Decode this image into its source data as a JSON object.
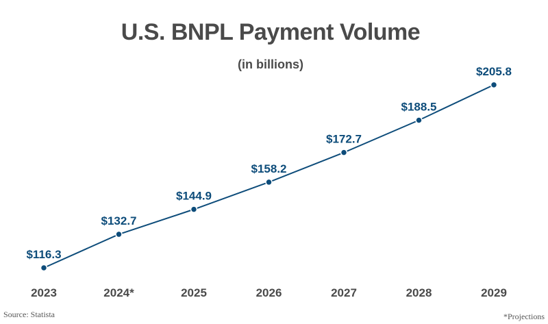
{
  "title": "U.S. BNPL Payment Volume",
  "subtitle": "(in billions)",
  "source": "Source: Statista",
  "footnote": "*Projections",
  "colors": {
    "line": "#0d4c7a",
    "marker": "#0d4c7a",
    "data_label": "#0d4c7a",
    "title": "#4a4a4a",
    "axis_label": "#4a4a4a",
    "background": "#ffffff"
  },
  "chart_data": {
    "type": "line",
    "title": "U.S. BNPL Payment Volume",
    "subtitle": "(in billions)",
    "categories": [
      "2023",
      "2024*",
      "2025",
      "2026",
      "2027",
      "2028",
      "2029"
    ],
    "values": [
      116.3,
      132.7,
      144.9,
      158.2,
      172.7,
      188.5,
      205.8
    ],
    "data_labels": [
      "$116.3",
      "$132.7",
      "$144.9",
      "$158.2",
      "$172.7",
      "$188.5",
      "$205.8"
    ],
    "xlabel": "",
    "ylabel": "",
    "ylim": [
      100,
      210
    ],
    "grid": false,
    "y_axis_visible": false,
    "legend": null,
    "annotations": [
      "*Projections",
      "Source: Statista"
    ]
  }
}
